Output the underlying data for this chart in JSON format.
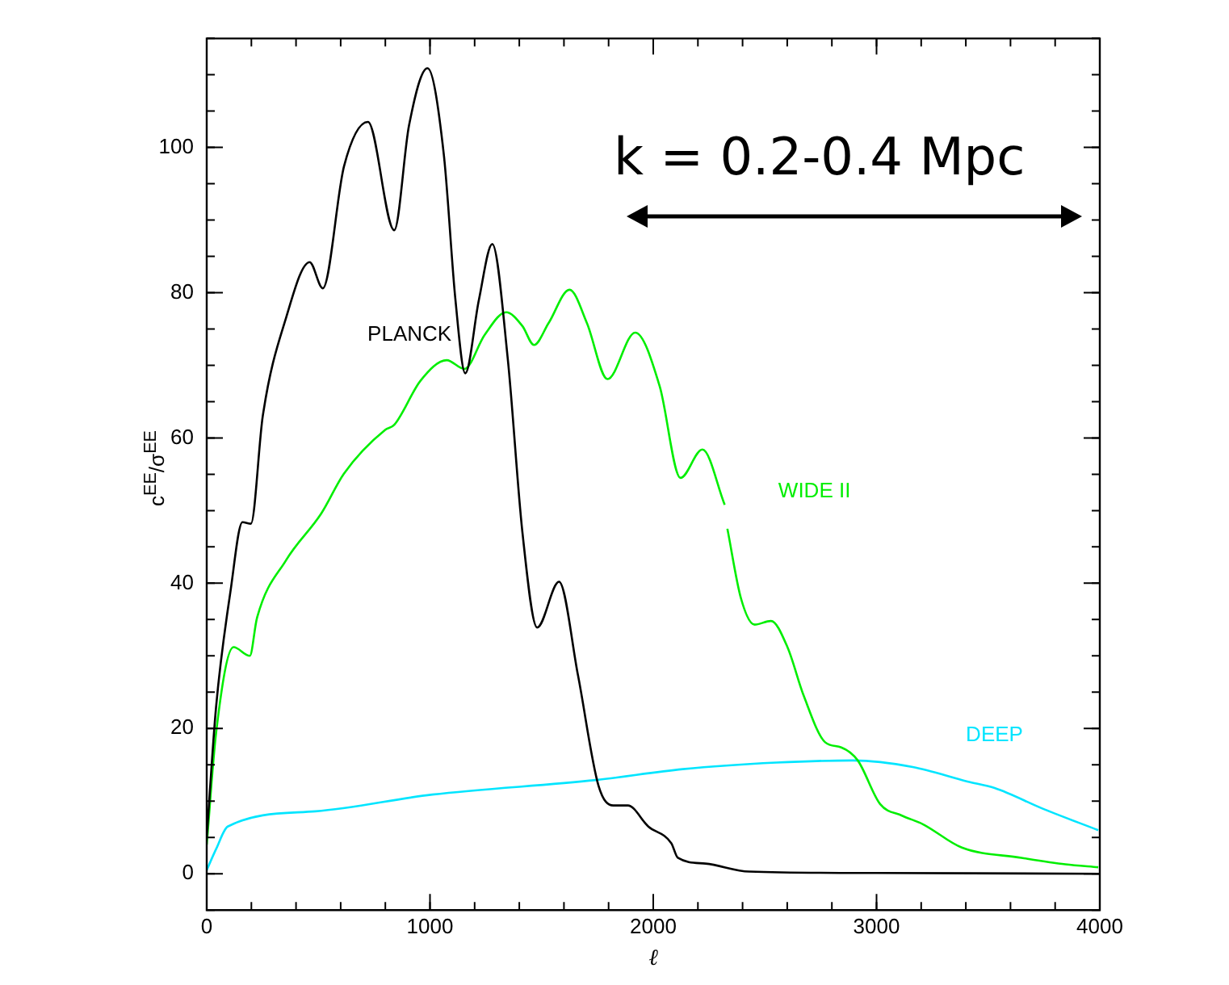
{
  "chart_data": {
    "type": "line",
    "xlabel": "ℓ",
    "ylabel": "c$^{EE}$/σ$^{EE}$",
    "annotations": [
      "k = 0.2-0.4 Mpc"
    ],
    "xlim": [
      0,
      4000
    ],
    "xticks": [
      0,
      1000,
      2000,
      3000,
      4000
    ],
    "ylim": [
      -5,
      115
    ],
    "yticks": [
      0,
      20,
      40,
      60,
      80,
      100
    ],
    "grid": false,
    "legend": false,
    "marker": "none",
    "line_style": "solid",
    "series": [
      {
        "name": "PLANCK",
        "color": "#000000",
        "x": [
          0,
          42,
          107,
          160,
          198,
          251,
          356,
          461,
          520,
          615,
          722,
          840,
          906,
          989,
          1062,
          1114,
          1158,
          1219,
          1279,
          1348,
          1414,
          1480,
          1578,
          1663,
          1755,
          1821,
          1886,
          1978,
          2081,
          2110,
          2234,
          2430,
          3000,
          4000
        ],
        "values": [
          5,
          23,
          39,
          48.4,
          48.2,
          63,
          76.6,
          84.2,
          80.6,
          97.4,
          103.5,
          88.6,
          103,
          110.9,
          99,
          79,
          68.9,
          79,
          86.7,
          71,
          47,
          33.9,
          40.2,
          27.3,
          12.1,
          9.4,
          9.4,
          6.5,
          4.2,
          2.2,
          1.4,
          0.3,
          0.1,
          0
        ]
      },
      {
        "name": "WIDE II",
        "color": "#00ee00",
        "x": [
          0,
          42,
          120,
          193,
          225,
          356,
          513,
          615,
          799,
          840,
          958,
          1075,
          1154,
          1245,
          1341,
          1414,
          1466,
          1531,
          1625,
          1703,
          1795,
          1919,
          2029,
          2122,
          2220,
          2320,
          2326,
          2332,
          2393,
          2454,
          2527,
          2601,
          2674,
          2770,
          2842,
          2916,
          3016,
          3114,
          3209,
          3382,
          3649,
          3846,
          3993
        ],
        "values": [
          4,
          19.4,
          31.2,
          30,
          35.2,
          43.2,
          49.6,
          55.1,
          61.1,
          61.8,
          67.9,
          70.7,
          69.5,
          74.2,
          77.3,
          75.4,
          72.8,
          75.8,
          80.4,
          75.8,
          68.1,
          74.5,
          67.1,
          54.5,
          58.4,
          50.8,
          null,
          47.5,
          37.9,
          34.3,
          34.8,
          31.2,
          24.5,
          18.1,
          17.4,
          15.6,
          9.6,
          8,
          6.8,
          3.6,
          2.2,
          1.3,
          0.9
        ]
      },
      {
        "name": "DEEP",
        "color": "#00e5ff",
        "x": [
          0,
          42,
          94,
          487,
          1010,
          1743,
          2132,
          2550,
          2894,
          3162,
          3407,
          3529,
          3749,
          3993
        ],
        "values": [
          0.5,
          3.4,
          6.5,
          8.6,
          10.9,
          12.9,
          14.4,
          15.3,
          15.6,
          14.7,
          12.7,
          11.8,
          8.9,
          6
        ]
      }
    ]
  }
}
